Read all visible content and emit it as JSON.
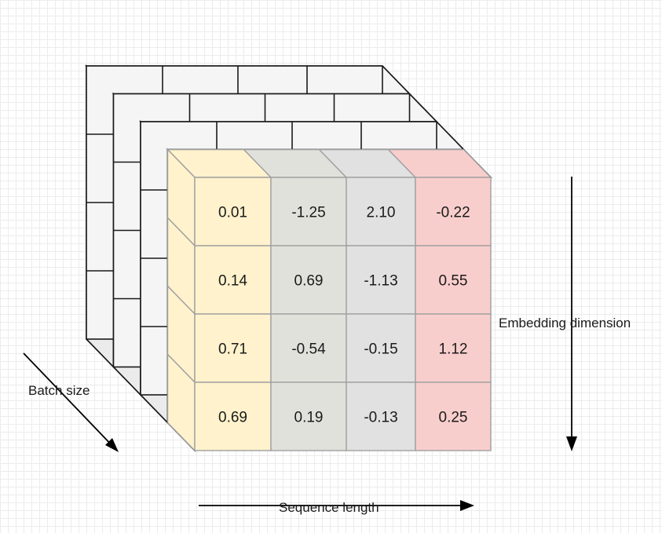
{
  "diagram": {
    "labels": {
      "batch": "Batch size",
      "embedding": "Embedding dimension",
      "sequence": "Sequence length"
    },
    "columns": [
      {
        "color": "#fff2cc",
        "values": [
          "0.01",
          "0.14",
          "0.71",
          "0.69"
        ]
      },
      {
        "color": "#e1e1dc",
        "values": [
          "-1.25",
          "0.69",
          "-0.54",
          "0.19"
        ]
      },
      {
        "color": "#e1e1e1",
        "values": [
          "2.10",
          "-1.13",
          "-0.15",
          "-0.13"
        ]
      },
      {
        "color": "#f8cecc",
        "values": [
          "-0.22",
          "0.55",
          "1.12",
          "0.25"
        ]
      }
    ],
    "colors": {
      "back_face": "#f5f5f5",
      "back_side": "#ebebeb",
      "stroke_back": "#1a1a1a",
      "stroke_front": "#a0a0a0"
    }
  }
}
